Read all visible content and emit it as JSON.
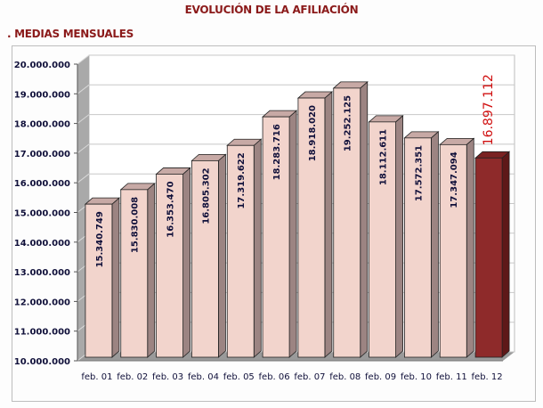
{
  "header": {
    "title": "EVOLUCIÓN DE LA AFILIACIÓN",
    "subtitle": ". MEDIAS MENSUALES"
  },
  "colors": {
    "title": "#8b1a1a",
    "bar_front": "#f2d4cc",
    "bar_side": "#9c8482",
    "bar_top": "#c7a9a5",
    "highlight_front": "#8e2a2a",
    "highlight_side": "#5e1818",
    "highlight_label": "#d01010",
    "wall": "#a9a9a9"
  },
  "chart_data": {
    "type": "bar",
    "title": "EVOLUCIÓN DE LA AFILIACIÓN",
    "subtitle": ". MEDIAS MENSUALES",
    "xlabel": "",
    "ylabel": "",
    "categories": [
      "feb. 01",
      "feb. 02",
      "feb. 03",
      "feb. 04",
      "feb. 05",
      "feb. 06",
      "feb. 07",
      "feb. 08",
      "feb. 09",
      "feb. 10",
      "feb. 11",
      "feb. 12"
    ],
    "values": [
      15340749,
      15830008,
      16353470,
      16805302,
      17319622,
      18283716,
      18918020,
      19252125,
      18112611,
      17572351,
      17347094,
      16897112
    ],
    "value_labels": [
      "15.340.749",
      "15.830.008",
      "16.353.470",
      "16.805.302",
      "17.319.622",
      "18.283.716",
      "18.918.020",
      "19.252.125",
      "18.112.611",
      "17.572.351",
      "17.347.094",
      "16.897.112"
    ],
    "highlight_index": 11,
    "ylim": [
      10000000,
      20000000
    ],
    "yticks": [
      10000000,
      11000000,
      12000000,
      13000000,
      14000000,
      15000000,
      16000000,
      17000000,
      18000000,
      19000000,
      20000000
    ],
    "ytick_labels": [
      "10.000.000",
      "11.000.000",
      "12.000.000",
      "13.000.000",
      "14.000.000",
      "15.000.000",
      "16.000.000",
      "17.000.000",
      "18.000.000",
      "19.000.000",
      "20.000.000"
    ],
    "grid": true,
    "style": "3d-column",
    "legend": "none"
  }
}
